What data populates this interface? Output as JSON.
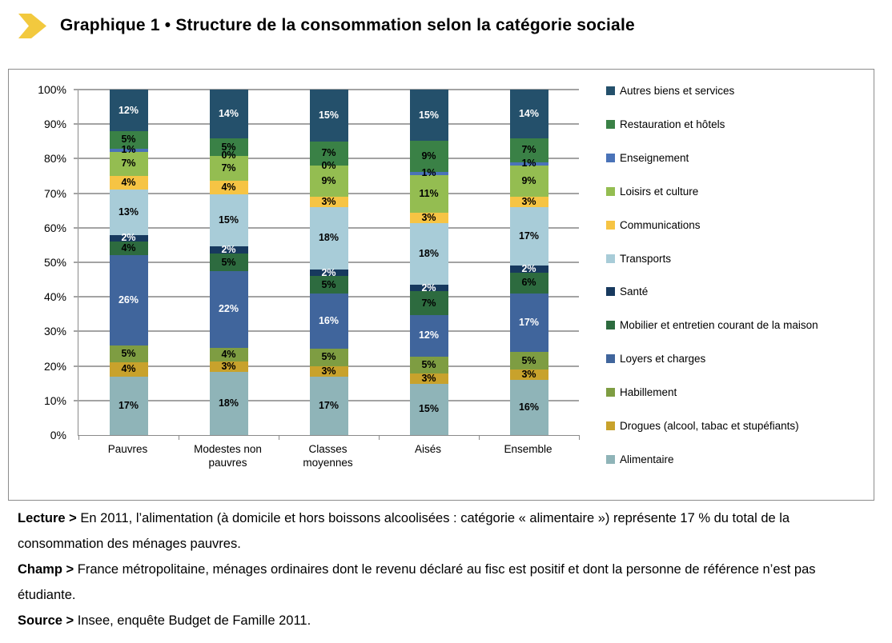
{
  "title": {
    "text": "Graphique 1 • Structure de la consommation selon la catégorie sociale",
    "icon_color": "#F2C93E"
  },
  "chart_data": {
    "type": "bar",
    "stacked": true,
    "stacking": "percent",
    "grid": true,
    "legend_position": "right",
    "value_suffix": "%",
    "categories": [
      "Pauvres",
      "Modestes non pauvres",
      "Classes moyennes",
      "Aisés",
      "Ensemble"
    ],
    "y_axis": {
      "min": 0,
      "max": 100,
      "step": 10,
      "tick_suffix": "%"
    },
    "series": [
      {
        "name": "Alimentaire",
        "color": "#8FB4B8",
        "label_white": false,
        "values": [
          17,
          18,
          17,
          15,
          16
        ]
      },
      {
        "name": "Drogues (alcool, tabac et stupéfiants)",
        "color": "#C8A22C",
        "label_white": false,
        "values": [
          4,
          3,
          3,
          3,
          3
        ]
      },
      {
        "name": "Habillement",
        "color": "#7E9D42",
        "label_white": false,
        "values": [
          5,
          4,
          5,
          5,
          5
        ]
      },
      {
        "name": "Loyers et charges",
        "color": "#40659C",
        "label_white": true,
        "values": [
          26,
          22,
          16,
          12,
          17
        ]
      },
      {
        "name": "Mobilier et entretien courant de la maison",
        "color": "#2D6B3F",
        "label_white": false,
        "values": [
          4,
          5,
          5,
          7,
          6
        ]
      },
      {
        "name": "Santé",
        "color": "#17395E",
        "label_white": true,
        "values": [
          2,
          2,
          2,
          2,
          2
        ]
      },
      {
        "name": "Transports",
        "color": "#A8CCD8",
        "label_white": false,
        "values": [
          13,
          15,
          18,
          18,
          17
        ]
      },
      {
        "name": "Communications",
        "color": "#F6C444",
        "label_white": false,
        "values": [
          4,
          4,
          3,
          3,
          3
        ]
      },
      {
        "name": "Loisirs et culture",
        "color": "#94BD51",
        "label_white": false,
        "values": [
          7,
          7,
          9,
          11,
          9
        ]
      },
      {
        "name": "Enseignement",
        "color": "#4A73B8",
        "label_white": false,
        "values": [
          1,
          0,
          0,
          1,
          1
        ]
      },
      {
        "name": "Restauration et hôtels",
        "color": "#3A8146",
        "label_white": false,
        "values": [
          5,
          5,
          7,
          9,
          7
        ]
      },
      {
        "name": "Autres biens et services",
        "color": "#24506B",
        "label_white": true,
        "values": [
          12,
          14,
          15,
          15,
          14
        ]
      }
    ]
  },
  "footer": {
    "lecture_label": "Lecture >",
    "lecture_text": " En 2011, l’alimentation (à domicile et hors boissons alcoolisées : catégorie « alimentaire ») représente 17 % du total de la consommation des ménages pauvres.",
    "champ_label": "Champ >",
    "champ_text": " France métropolitaine, ménages ordinaires dont le revenu déclaré au fisc est positif et dont la personne de référence n’est pas étudiante.",
    "source_label": "Source >",
    "source_text": " Insee, enquête Budget de Famille 2011."
  }
}
